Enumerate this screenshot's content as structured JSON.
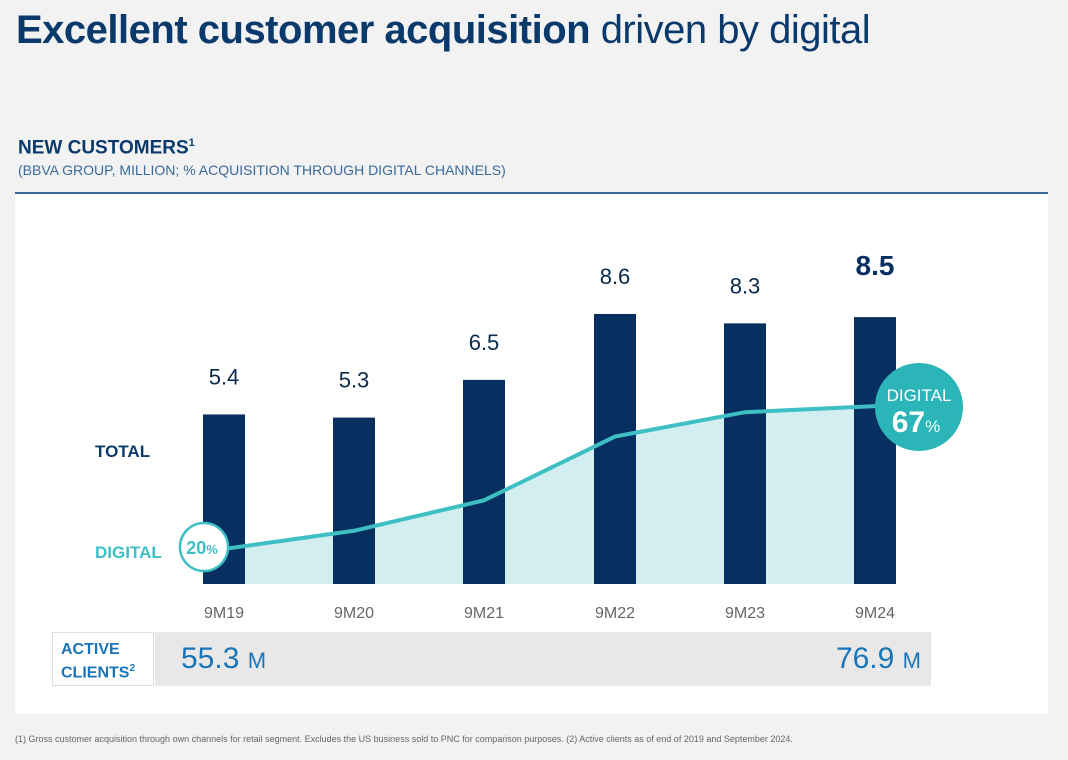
{
  "title": {
    "bold": "Excellent customer acquisition",
    "light": "driven by digital"
  },
  "section": {
    "title": "NEW CUSTOMERS",
    "title_sup": "1",
    "subtitle": "(BBVA GROUP, MILLION; % ACQUISITION THROUGH DIGITAL CHANNELS)"
  },
  "chart_data": {
    "type": "bar",
    "categories": [
      "9M19",
      "9M20",
      "9M21",
      "9M22",
      "9M23",
      "9M24"
    ],
    "series": [
      {
        "name": "TOTAL",
        "values": [
          5.4,
          5.3,
          6.5,
          8.6,
          8.3,
          8.5
        ],
        "labels": [
          "5.4",
          "5.3",
          "6.5",
          "8.6",
          "8.3",
          "8.5"
        ],
        "color": "#072f5f"
      },
      {
        "name": "DIGITAL",
        "type": "area",
        "values": [
          20,
          26,
          36,
          57,
          65,
          67
        ],
        "unit": "%",
        "color": "#3dbfc4",
        "fill": "#d3eef0"
      }
    ],
    "labels": {
      "total": "TOTAL",
      "digital": "DIGITAL"
    },
    "start_badge": {
      "value": "20",
      "unit": "%"
    },
    "end_badge": {
      "label": "DIGITAL",
      "value": "67",
      "unit": "%",
      "color": "#2bb5b8"
    }
  },
  "active_clients": {
    "label_line1": "ACTIVE",
    "label_line2": "CLIENTS",
    "label_sup": "2",
    "start": "55.3",
    "end": "76.9",
    "unit": "M"
  },
  "footnote": "(1) Gross customer acquisition through own channels for retail segment. Excludes the US business sold to PNC for comparison purposes. (2) Active clients as of end of 2019 and September 2024."
}
